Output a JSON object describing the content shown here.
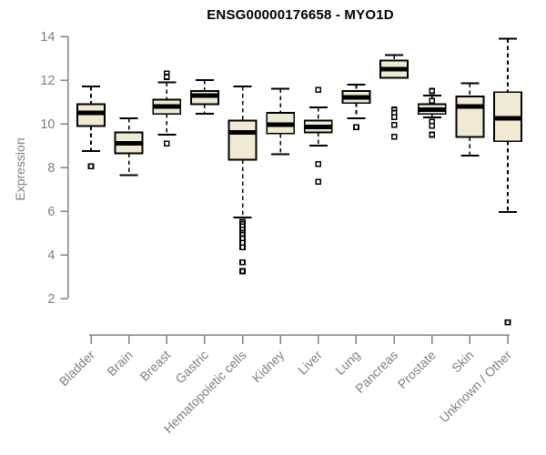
{
  "chart_data": {
    "type": "boxplot",
    "title": "ENSG00000176658 - MYO1D",
    "ylabel": "Expression",
    "xlabel": "",
    "ylim": [
      2,
      14
    ],
    "yticks": [
      2,
      4,
      6,
      8,
      10,
      12,
      14
    ],
    "grid": false,
    "legend": null,
    "categories": [
      "Bladder",
      "Brain",
      "Breast",
      "Gastric",
      "Hematopoietic cells",
      "Kidney",
      "Liver",
      "Lung",
      "Pancreas",
      "Prostate",
      "Skin",
      "Unknown / Other"
    ],
    "boxes": [
      {
        "category": "Bladder",
        "whisker_low": 8.75,
        "q1": 9.9,
        "median": 10.5,
        "q3": 10.9,
        "whisker_high": 11.7,
        "outliers": [
          8.05
        ]
      },
      {
        "category": "Brain",
        "whisker_low": 7.65,
        "q1": 8.65,
        "median": 9.1,
        "q3": 9.6,
        "whisker_high": 10.25,
        "outliers": []
      },
      {
        "category": "Breast",
        "whisker_low": 9.5,
        "q1": 10.45,
        "median": 10.8,
        "q3": 11.1,
        "whisker_high": 11.9,
        "outliers": [
          12.3,
          12.15,
          9.1
        ]
      },
      {
        "category": "Gastric",
        "whisker_low": 10.45,
        "q1": 10.9,
        "median": 11.3,
        "q3": 11.5,
        "whisker_high": 12.0,
        "outliers": []
      },
      {
        "category": "Hematopoietic cells",
        "whisker_low": 5.7,
        "q1": 8.35,
        "median": 9.6,
        "q3": 10.15,
        "whisker_high": 11.7,
        "outliers": [
          5.5,
          5.4,
          5.3,
          5.15,
          5.0,
          4.9,
          4.75,
          4.55,
          4.35,
          3.65,
          3.25
        ]
      },
      {
        "category": "Kidney",
        "whisker_low": 8.6,
        "q1": 9.55,
        "median": 9.95,
        "q3": 10.5,
        "whisker_high": 11.6,
        "outliers": []
      },
      {
        "category": "Liver",
        "whisker_low": 9.0,
        "q1": 9.6,
        "median": 9.85,
        "q3": 10.15,
        "whisker_high": 10.75,
        "outliers": [
          11.55,
          8.15,
          7.35
        ]
      },
      {
        "category": "Lung",
        "whisker_low": 10.25,
        "q1": 10.95,
        "median": 11.2,
        "q3": 11.5,
        "whisker_high": 11.8,
        "outliers": [
          9.85
        ]
      },
      {
        "category": "Pancreas",
        "whisker_low": 12.1,
        "q1": 12.1,
        "median": 12.5,
        "q3": 12.9,
        "whisker_high": 13.15,
        "outliers": [
          10.65,
          10.5,
          10.3,
          9.95,
          9.4
        ]
      },
      {
        "category": "Prostate",
        "whisker_low": 10.3,
        "q1": 10.45,
        "median": 10.65,
        "q3": 10.9,
        "whisker_high": 11.3,
        "outliers": [
          11.5,
          11.05,
          10.1,
          9.9,
          9.5
        ]
      },
      {
        "category": "Skin",
        "whisker_low": 8.55,
        "q1": 9.4,
        "median": 10.8,
        "q3": 11.25,
        "whisker_high": 11.85,
        "outliers": []
      },
      {
        "category": "Unknown / Other",
        "whisker_low": 5.95,
        "q1": 9.2,
        "median": 10.25,
        "q3": 11.45,
        "whisker_high": 13.9,
        "outliers": [
          0.9
        ]
      }
    ],
    "colors": {
      "box_fill": "#F0EAD2",
      "box_border": "#000000",
      "axis": "#828282",
      "tick_label": "#7F7F7F",
      "title": "#000000",
      "background": "#FFFFFF"
    }
  }
}
